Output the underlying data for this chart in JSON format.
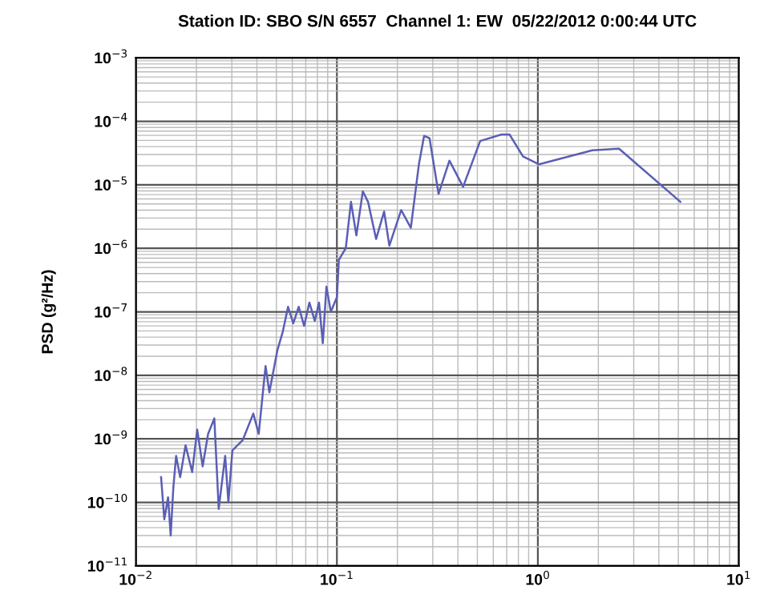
{
  "chart_data": {
    "type": "line",
    "title": "Station ID: SBO S/N 6557  Channel 1: EW  05/22/2012 0:00:44 UTC",
    "ylabel": "PSD (g²/Hz)",
    "log": "xy",
    "grid": true,
    "marker": "none",
    "line_style": "solid",
    "xlim": [
      0.01,
      10
    ],
    "ylim": [
      1e-11,
      0.001
    ],
    "xticks": [
      {
        "value": 0.01,
        "label": "10$^{−2}$"
      },
      {
        "value": 0.1,
        "label": "10$^{−1}$"
      },
      {
        "value": 1,
        "label": "10$^{0}$"
      },
      {
        "value": 10,
        "label": "10$^{1}$"
      }
    ],
    "yticks": [
      {
        "value": 1e-11,
        "label": "10$^{−11}$"
      },
      {
        "value": 1e-10,
        "label": "10$^{−10}$"
      },
      {
        "value": 1e-09,
        "label": "10$^{−9}$"
      },
      {
        "value": 1e-08,
        "label": "10$^{−8}$"
      },
      {
        "value": 1e-07,
        "label": "10$^{−7}$"
      },
      {
        "value": 1e-06,
        "label": "10$^{−6}$"
      },
      {
        "value": 1e-05,
        "label": "10$^{−5}$"
      },
      {
        "value": 0.0001,
        "label": "10$^{−4}$"
      },
      {
        "value": 0.001,
        "label": "10$^{−3}$"
      }
    ],
    "series": [
      {
        "color": "#5a5fb5",
        "x": [
          0.01334,
          0.01384,
          0.01445,
          0.01489,
          0.01535,
          0.01585,
          0.0166,
          0.01766,
          0.01905,
          0.02018,
          0.02148,
          0.02286,
          0.02455,
          0.02582,
          0.0278,
          0.02884,
          0.0302,
          0.03396,
          0.03837,
          0.04083,
          0.04416,
          0.04613,
          0.05058,
          0.05383,
          0.05715,
          0.06067,
          0.06457,
          0.06871,
          0.07295,
          0.07762,
          0.08147,
          0.0851,
          0.0887,
          0.0933,
          0.1,
          0.1023,
          0.1107,
          0.1175,
          0.125,
          0.1346,
          0.1429,
          0.1567,
          0.1718,
          0.1824,
          0.2089,
          0.2333,
          0.2559,
          0.2716,
          0.2891,
          0.3206,
          0.3631,
          0.4246,
          0.5164,
          0.6592,
          0.7228,
          0.8433,
          1.014,
          1.866,
          2.535,
          5.117
        ],
        "values": [
          2.5e-10,
          5.4e-11,
          1.2e-10,
          3e-11,
          1.7e-10,
          5.4e-10,
          2.5e-10,
          7.9e-10,
          3e-10,
          1.4e-09,
          3.7e-10,
          1.2e-09,
          2.1e-09,
          7.9e-11,
          5.4e-10,
          1e-10,
          6.6e-10,
          9.5e-10,
          2.5e-09,
          1.2e-09,
          1.4e-08,
          5.4e-09,
          2.5e-08,
          4.9e-08,
          1.2e-07,
          6.6e-08,
          1.2e-07,
          6e-08,
          1.4e-07,
          7.2e-08,
          1.4e-07,
          3.2e-08,
          2.5e-07,
          1e-07,
          1.7e-07,
          6.6e-07,
          1e-06,
          5.4e-06,
          1.6e-06,
          7.9e-06,
          5.4e-06,
          1.4e-06,
          3.8e-06,
          1.1e-06,
          4e-06,
          2.1e-06,
          2.1e-05,
          5.9e-05,
          5.4e-05,
          7.2e-06,
          2.4e-05,
          9.3e-06,
          4.9e-05,
          6.2e-05,
          6.2e-05,
          2.8e-05,
          2.1e-05,
          3.5e-05,
          3.7e-05,
          5.4e-06
        ]
      }
    ]
  }
}
